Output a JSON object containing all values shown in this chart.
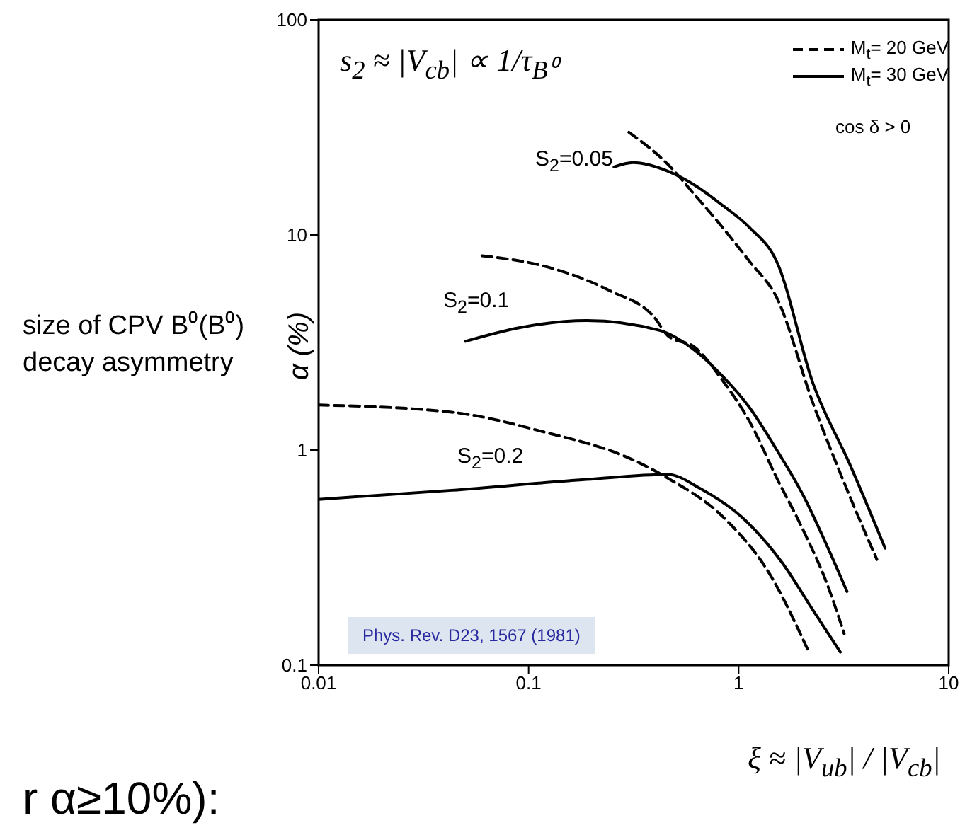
{
  "chart_data": {
    "type": "line",
    "log": "xy",
    "xlabel": "ξ ≈ |V$_{ub}$| / |V$_{cb}$|",
    "ylabel": "α (%)",
    "xlim": [
      0.01,
      10
    ],
    "xticks": [
      0.01,
      0.1,
      1,
      10
    ],
    "ylim": [
      0.1,
      100
    ],
    "yticks": [
      0.1,
      1,
      10,
      100
    ],
    "legend": "top right",
    "marker": "none",
    "series": [
      {
        "name": "M$_{t}$= 20 GeV",
        "color": "#000000",
        "line_style": "dashed",
        "x": [
          0.3,
          0.46,
          0.62,
          0.84,
          1.13,
          1.52,
          2.26,
          3.38,
          4.55
        ],
        "values": [
          30,
          21.3,
          15.3,
          10.8,
          7.5,
          5.1,
          1.65,
          0.61,
          0.31
        ]
      },
      {
        "name": "M$_{t}$= 30 GeV",
        "color": "#000000",
        "line_style": "solid",
        "x": [
          0.255,
          0.314,
          0.46,
          0.62,
          0.84,
          1.13,
          1.52,
          2.26,
          3.38,
          4.98
        ],
        "values": [
          20.7,
          21.7,
          19.8,
          17,
          13.7,
          10.8,
          7.5,
          2.04,
          0.86,
          0.35
        ]
      },
      {
        "color": "#000000",
        "line_style": "dashed",
        "x": [
          0.06,
          0.116,
          0.244,
          0.4,
          0.46,
          0.62,
          0.84,
          1.13,
          1.52,
          2.04,
          2.63,
          3.18
        ],
        "values": [
          8,
          7.2,
          5.5,
          4.1,
          3.4,
          3,
          2.1,
          1.35,
          0.74,
          0.42,
          0.24,
          0.14
        ]
      },
      {
        "color": "#000000",
        "line_style": "solid",
        "x": [
          0.05,
          0.09,
          0.189,
          0.42,
          0.62,
          0.84,
          1.13,
          1.52,
          2.04,
          2.63,
          3.28
        ],
        "values": [
          3.2,
          3.7,
          4,
          3.6,
          2.9,
          2.2,
          1.57,
          1,
          0.61,
          0.36,
          0.22
        ]
      },
      {
        "color": "#000000",
        "line_style": "dashed",
        "x": [
          0.01,
          0.043,
          0.116,
          0.314,
          0.46,
          0.84,
          1.39,
          2.16
        ],
        "values": [
          1.62,
          1.5,
          1.22,
          0.9,
          0.74,
          0.49,
          0.27,
          0.115
        ]
      },
      {
        "color": "#000000",
        "line_style": "solid",
        "x": [
          0.01,
          0.043,
          0.189,
          0.46,
          0.66,
          1.08,
          1.61,
          2.26,
          3.05
        ],
        "values": [
          0.59,
          0.65,
          0.73,
          0.77,
          0.66,
          0.47,
          0.3,
          0.18,
          0.115
        ]
      }
    ],
    "annotations": [
      "S$_{2}$=0.05",
      "S$_{2}$=0.1",
      "S$_{2}$=0.2",
      "s$_{2}$ ≈ |V$_{cb}$| ∝ 1/τ$_{B⁰}$",
      "cos δ > 0",
      "Phys. Rev. D23, 1567 (1981)",
      "size of CPV B⁰(B⁰) decay asymmetry",
      "r α≥10%):"
    ]
  }
}
